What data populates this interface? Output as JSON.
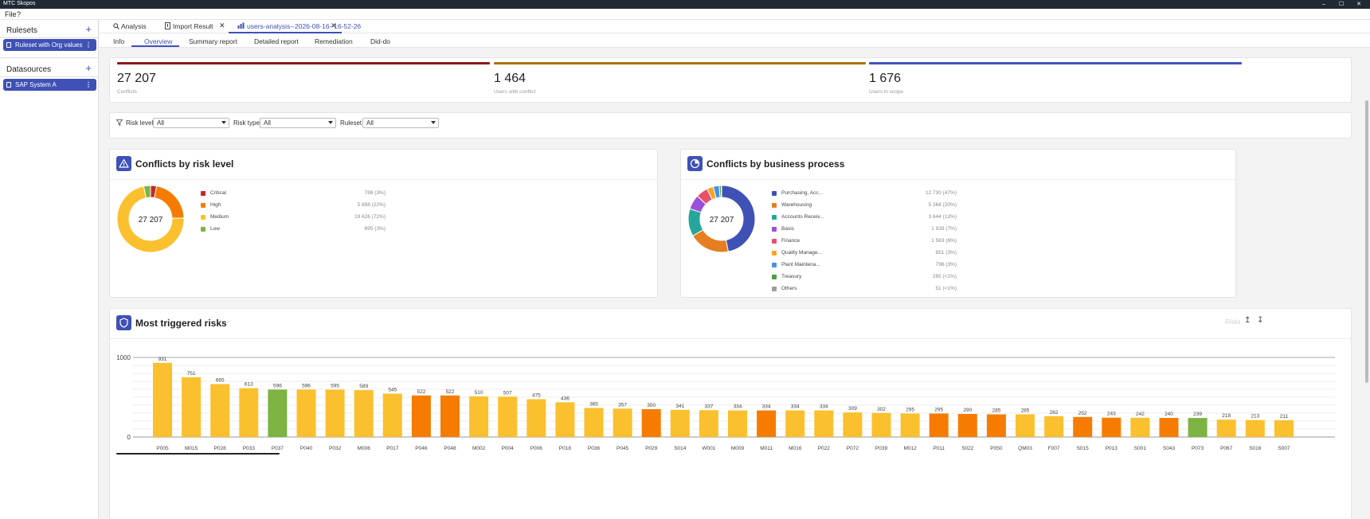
{
  "window": {
    "title": "MTC Skopos",
    "controls": [
      "–",
      "☐",
      "✕"
    ]
  },
  "menu": {
    "file": "File",
    "help": "?"
  },
  "sidebar": {
    "rulesets_title": "Rulesets",
    "add": "+",
    "ruleset_item": "Ruleset with Org values",
    "datasources_title": "Datasources",
    "datasource_item": "SAP System A",
    "kebab": "⋮"
  },
  "tabs": {
    "analysis": "Analysis",
    "import": "Import Result",
    "users": "users-analysis--2026-08-16--16-52-26",
    "close": "✕"
  },
  "subtabs": [
    "Info",
    "Overview",
    "Summary report",
    "Detailed report",
    "Remediation",
    "Did-do"
  ],
  "stats": [
    {
      "value": "27 207",
      "label": "Conflicts",
      "color": "#8b1a1a"
    },
    {
      "value": "1 464",
      "label": "Users with conflict",
      "color": "#a8720e"
    },
    {
      "value": "1 676",
      "label": "Users in scope",
      "color": "#3f51b5"
    }
  ],
  "filters": {
    "risk_level": {
      "label": "Risk level",
      "value": "All"
    },
    "risk_type": {
      "label": "Risk type",
      "value": "All"
    },
    "ruleset": {
      "label": "Ruleset",
      "value": "All"
    }
  },
  "risk_panel": {
    "title": "Conflicts by risk level",
    "total": "27 207",
    "items": [
      {
        "name": "Critical",
        "value": 788,
        "text": "788 (3%)",
        "color": "#c62828"
      },
      {
        "name": "High",
        "value": 5898,
        "text": "5 898 (22%)",
        "color": "#f57c00"
      },
      {
        "name": "Medium",
        "value": 19626,
        "text": "19 626 (72%)",
        "color": "#fbc02d"
      },
      {
        "name": "Low",
        "value": 895,
        "text": "895 (3%)",
        "color": "#7cb342"
      }
    ]
  },
  "process_panel": {
    "title": "Conflicts by business process",
    "total": "27 207",
    "items": [
      {
        "name": "Purchasing, Acc...",
        "value": 12730,
        "text": "12 730 (47%)",
        "color": "#3f51b5"
      },
      {
        "name": "Warehousing",
        "value": 5368,
        "text": "5 368 (20%)",
        "color": "#e67e22"
      },
      {
        "name": "Accounts Receiv...",
        "value": 3644,
        "text": "3 644 (13%)",
        "color": "#26a69a"
      },
      {
        "name": "Basis",
        "value": 1939,
        "text": "1 939 (7%)",
        "color": "#9c4fd8"
      },
      {
        "name": "Finance",
        "value": 1563,
        "text": "1 563 (6%)",
        "color": "#e8506a"
      },
      {
        "name": "Quality Manage...",
        "value": 851,
        "text": "851 (3%)",
        "color": "#f5a623"
      },
      {
        "name": "Plant Maintena...",
        "value": 796,
        "text": "796 (3%)",
        "color": "#4a90e2"
      },
      {
        "name": "Treasury",
        "value": 265,
        "text": "265 (<1%)",
        "color": "#43a047"
      },
      {
        "name": "Others",
        "value": 51,
        "text": "51 (<1%)",
        "color": "#9e9e9e"
      }
    ]
  },
  "risks_panel": {
    "title": "Most triggered risks",
    "control": "Risks",
    "sort_asc": "↥",
    "sort_desc": "↧"
  },
  "chart_data": {
    "type": "bar",
    "title": "Most triggered risks",
    "ylim": [
      0,
      1000
    ],
    "yticks": [
      "0",
      "1000"
    ],
    "categories": [
      "P005",
      "M015",
      "P028",
      "P033",
      "P037",
      "P040",
      "P032",
      "M006",
      "P017",
      "P046",
      "P048",
      "M002",
      "P004",
      "P006",
      "P018",
      "P036",
      "P045",
      "P029",
      "S014",
      "W001",
      "M009",
      "M011",
      "M016",
      "P022",
      "P072",
      "P039",
      "M012",
      "P011",
      "S022",
      "P050",
      "QM03",
      "F007",
      "S015",
      "P013",
      "S001",
      "S043",
      "P073",
      "P067",
      "S016",
      "S007"
    ],
    "values": [
      931,
      751,
      665,
      613,
      596,
      596,
      595,
      589,
      545,
      522,
      522,
      510,
      507,
      475,
      436,
      365,
      357,
      350,
      341,
      337,
      334,
      334,
      334,
      334,
      309,
      302,
      295,
      295,
      290,
      285,
      285,
      262,
      252,
      243,
      242,
      240,
      239,
      218,
      213,
      211
    ],
    "levels": [
      "M",
      "M",
      "M",
      "M",
      "L",
      "M",
      "M",
      "M",
      "M",
      "H",
      "H",
      "M",
      "M",
      "M",
      "M",
      "M",
      "M",
      "H",
      "M",
      "M",
      "M",
      "H",
      "M",
      "M",
      "M",
      "M",
      "M",
      "H",
      "H",
      "H",
      "M",
      "M",
      "H",
      "H",
      "M",
      "H",
      "L",
      "M",
      "M",
      "M"
    ],
    "level_colors": {
      "M": "#fbc02d",
      "H": "#f57c00",
      "L": "#7cb342"
    },
    "grid": true
  }
}
